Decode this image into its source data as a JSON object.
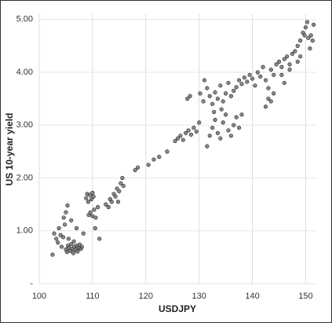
{
  "chart_data": {
    "type": "scatter",
    "x_label": "USDJPY",
    "y_label": "US 10-year yield",
    "color": "#6b6b6b",
    "grid": true,
    "xlim": [
      100,
      152
    ],
    "xticks": [
      100,
      110,
      120,
      130,
      140,
      150
    ],
    "ylim": [
      0,
      5.1
    ],
    "yticks": [
      {
        "value": 0,
        "label": "-"
      },
      {
        "value": 1,
        "label": "1.00"
      },
      {
        "value": 2,
        "label": "2.00"
      },
      {
        "value": 3,
        "label": "3.00"
      },
      {
        "value": 4,
        "label": "4.00"
      },
      {
        "value": 5,
        "label": "5.00"
      }
    ],
    "x": [
      102.5,
      102.8,
      103.2,
      103.5,
      103.7,
      104.0,
      104.2,
      104.5,
      104.8,
      105.0,
      105.2,
      105.4,
      105.6,
      105.8,
      106.0,
      106.2,
      106.4,
      106.6,
      106.8,
      107.0,
      107.2,
      107.4,
      107.6,
      107.8,
      108.0,
      106.5,
      105.5,
      104.6,
      105.0,
      105.3,
      106.0,
      107.0,
      108.3,
      108.8,
      109.0,
      109.2,
      109.5,
      109.8,
      110.0,
      110.2,
      109.3,
      109.6,
      110.0,
      110.3,
      110.6,
      111.0,
      111.3,
      110.5,
      112.5,
      113.0,
      113.3,
      113.6,
      114.0,
      114.3,
      114.6,
      115.0,
      115.3,
      115.6,
      115.8,
      114.8,
      118.0,
      118.5,
      120.5,
      121.5,
      122.5,
      124.0,
      125.5,
      126.0,
      126.5,
      127.0,
      127.5,
      128.0,
      128.5,
      129.0,
      129.5,
      130.0,
      127.8,
      128.3,
      130.2,
      130.8,
      131.0,
      131.5,
      132.0,
      132.5,
      133.0,
      133.5,
      134.0,
      134.5,
      135.0,
      135.5,
      136.0,
      136.5,
      137.0,
      137.5,
      138.0,
      138.5,
      139.0,
      139.5,
      140.0,
      140.5,
      141.0,
      141.5,
      142.0,
      142.5,
      143.0,
      143.5,
      144.0,
      131.5,
      132.0,
      132.5,
      133.0,
      133.5,
      134.0,
      134.5,
      135.0,
      135.5,
      136.0,
      136.5,
      137.0,
      137.5,
      138.0,
      134.2,
      132.8,
      142.5,
      143.0,
      143.5,
      144.0,
      144.5,
      145.0,
      145.5,
      146.0,
      146.5,
      147.0,
      147.5,
      148.0,
      148.5,
      149.0,
      149.5,
      150.0,
      150.3,
      149.8,
      150.5,
      151.0,
      151.3,
      149.0,
      148.5,
      150.8,
      151.5,
      147.0,
      146.0,
      145.5
    ],
    "values": [
      0.55,
      0.95,
      0.85,
      0.78,
      1.05,
      0.92,
      0.7,
      0.88,
      1.12,
      0.65,
      0.6,
      0.72,
      0.68,
      0.62,
      0.75,
      0.66,
      0.58,
      0.7,
      0.64,
      0.72,
      0.61,
      0.68,
      0.74,
      0.66,
      0.7,
      0.8,
      0.85,
      1.25,
      1.35,
      1.48,
      1.2,
      1.05,
      0.95,
      1.62,
      1.7,
      1.55,
      1.68,
      1.6,
      1.72,
      1.65,
      1.3,
      1.35,
      1.28,
      1.4,
      1.25,
      1.45,
      0.85,
      1.05,
      1.5,
      1.45,
      1.6,
      1.55,
      1.7,
      1.65,
      1.8,
      1.75,
      1.9,
      2.0,
      1.85,
      1.55,
      2.15,
      2.2,
      2.25,
      2.35,
      2.4,
      2.5,
      2.7,
      2.75,
      2.8,
      2.72,
      2.85,
      2.9,
      2.82,
      2.95,
      2.88,
      3.05,
      3.5,
      3.55,
      3.6,
      3.45,
      3.85,
      3.7,
      3.55,
      3.4,
      3.62,
      3.5,
      3.75,
      3.45,
      3.6,
      3.8,
      3.55,
      3.65,
      3.72,
      3.85,
      3.78,
      3.9,
      3.82,
      3.95,
      3.88,
      3.75,
      4.0,
      3.92,
      4.1,
      3.85,
      3.7,
      4.05,
      3.95,
      2.6,
      2.8,
      2.95,
      3.1,
      2.85,
      2.75,
      3.05,
      3.2,
      2.9,
      2.8,
      3.0,
      3.15,
      2.95,
      3.2,
      3.3,
      3.25,
      3.35,
      3.5,
      3.45,
      3.6,
      4.15,
      4.2,
      4.1,
      4.25,
      4.3,
      4.15,
      4.35,
      4.4,
      4.5,
      4.6,
      4.75,
      4.85,
      4.95,
      4.7,
      4.65,
      4.7,
      4.6,
      4.3,
      4.2,
      4.45,
      4.9,
      4.05,
      3.8,
      3.95
    ]
  }
}
